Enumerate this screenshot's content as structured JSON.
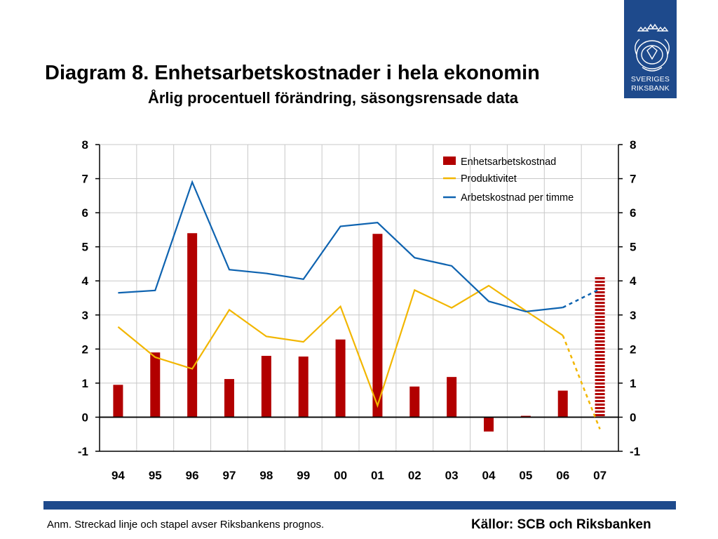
{
  "header": {
    "title": "Diagram 8. Enhetsarbetskostnader i hela ekonomin",
    "subtitle": "Årlig procentuell förändring, säsongsrensade data"
  },
  "logo": {
    "line1": "SVERIGES",
    "line2": "RIKSBANK",
    "icon": "riksbank-crest-icon"
  },
  "footer": {
    "note": "Anm. Streckad linje och stapel avser Riksbankens prognos.",
    "sources": "Källor: SCB och Riksbanken"
  },
  "colors": {
    "bar": "#b20000",
    "productivity": "#f2b600",
    "laborcost": "#0e63b0",
    "brand": "#1e4a8c"
  },
  "chart_data": {
    "type": "bar",
    "categories": [
      "94",
      "95",
      "96",
      "97",
      "98",
      "99",
      "00",
      "01",
      "02",
      "03",
      "04",
      "05",
      "06",
      "07"
    ],
    "ylim": [
      -1,
      8
    ],
    "yticks": [
      -1,
      0,
      1,
      2,
      3,
      4,
      5,
      6,
      7,
      8
    ],
    "grid": true,
    "legend_position": "top-right",
    "forecast_from": "06",
    "series": [
      {
        "name": "Enhetsarbetskostnad",
        "type": "bar",
        "values": [
          0.95,
          1.9,
          5.4,
          1.12,
          1.8,
          1.78,
          2.28,
          5.38,
          0.9,
          1.18,
          -0.42,
          0.04,
          0.78,
          4.15
        ]
      },
      {
        "name": "Produktivitet",
        "type": "line",
        "values": [
          2.65,
          1.76,
          1.42,
          3.15,
          2.37,
          2.21,
          3.25,
          0.34,
          3.73,
          3.21,
          3.86,
          3.12,
          2.4,
          -0.35
        ]
      },
      {
        "name": "Arbetskostnad per timme",
        "type": "line",
        "values": [
          3.65,
          3.72,
          6.9,
          4.33,
          4.22,
          4.05,
          5.6,
          5.71,
          4.68,
          4.44,
          3.4,
          3.1,
          3.22,
          3.76
        ]
      }
    ]
  }
}
